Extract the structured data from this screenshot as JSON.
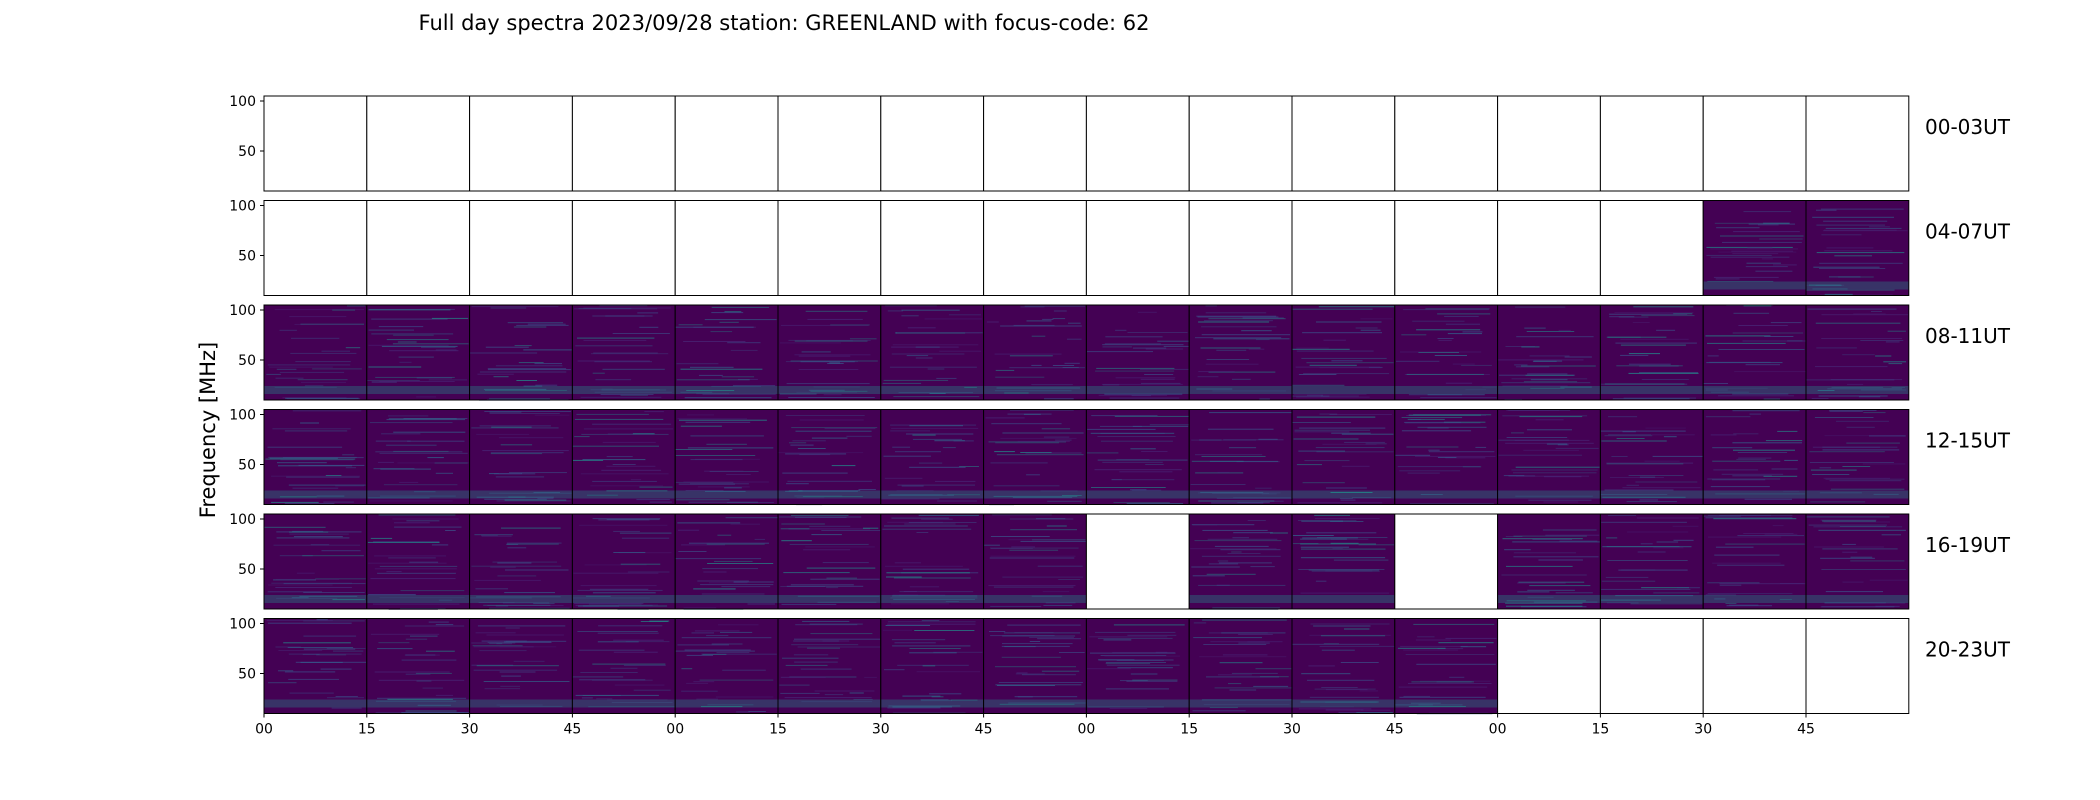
{
  "chart_data": {
    "type": "heatmap",
    "title": "Full day spectra 2023/09/28 station: GREENLAND with focus-code: 62",
    "ylabel": "Frequency [MHz]",
    "ylim": [
      10,
      105
    ],
    "yticks": [
      "100",
      "50"
    ],
    "xtick_labels": [
      "00",
      "15",
      "30",
      "45",
      "00",
      "15",
      "30",
      "45",
      "00",
      "15",
      "30",
      "45",
      "00",
      "15",
      "30",
      "45"
    ],
    "rows": [
      {
        "label": "00-03UT",
        "panels": "EEEEEEEEEEEEEEEE"
      },
      {
        "label": "04-07UT",
        "panels": "EEEEEEEEEEEEEEDD"
      },
      {
        "label": "08-11UT",
        "panels": "DDDDDDDDDDDDDDDD"
      },
      {
        "label": "12-15UT",
        "panels": "DDDDDDDDDDDDDDDD"
      },
      {
        "label": "16-19UT",
        "panels": "DDDDDDDDEDDEDDDD"
      },
      {
        "label": "20-23UT",
        "panels": "DDDDDDDDDDDDEEEE"
      }
    ],
    "panel_legend": {
      "D": "spectrum data",
      "E": "no data"
    },
    "colors": {
      "background": "#440154",
      "mid": "#3b528b",
      "teal": "#21918c",
      "green": "#5ec962",
      "yellow": "#fde725"
    }
  }
}
